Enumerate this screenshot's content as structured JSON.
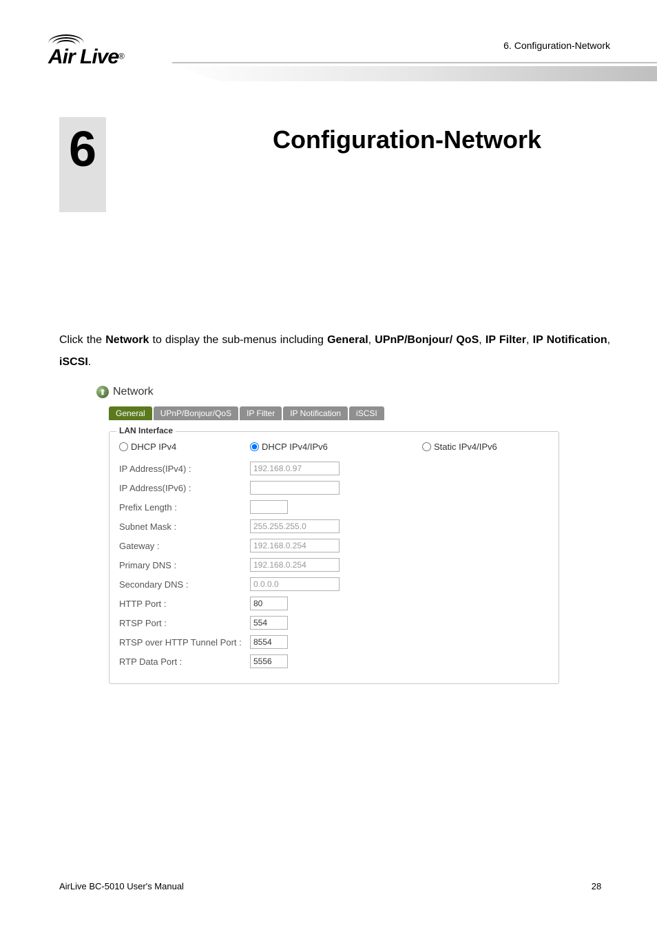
{
  "header": {
    "logo_text": "Air Live",
    "reg_mark": "®",
    "breadcrumb": "6.  Configuration-Network"
  },
  "chapter": {
    "number": "6",
    "title": "Configuration-Network"
  },
  "intro": {
    "pre": "Click the ",
    "b1": "Network",
    "mid1": " to display the sub-menus including ",
    "b2": "General",
    "sep1": ", ",
    "b3": "UPnP/Bonjour/ QoS",
    "sep2": ", ",
    "b4": "IP Filter",
    "sep3": ", ",
    "b5": "IP Notification",
    "sep4": ", ",
    "b6": "iSCSI",
    "end": "."
  },
  "screenshot": {
    "section_label": "Network",
    "tabs": [
      "General",
      "UPnP/Bonjour/QoS",
      "IP Filter",
      "IP Notification",
      "iSCSI"
    ],
    "active_tab_index": 0,
    "fieldset_legend": "LAN Interface",
    "radios": {
      "r1": "DHCP IPv4",
      "r2": "DHCP IPv4/IPv6",
      "r3": "Static IPv4/IPv6",
      "selected": "r2"
    },
    "rows": [
      {
        "label": "IP Address(IPv4) :",
        "value": "192.168.0.97",
        "w": "ip",
        "enabled": false
      },
      {
        "label": "IP Address(IPv6) :",
        "value": "",
        "w": "ip",
        "enabled": false
      },
      {
        "label": "Prefix Length :",
        "value": "",
        "w": "prefix",
        "enabled": false
      },
      {
        "label": "Subnet Mask :",
        "value": "255.255.255.0",
        "w": "ip",
        "enabled": false
      },
      {
        "label": "Gateway :",
        "value": "192.168.0.254",
        "w": "ip",
        "enabled": false
      },
      {
        "label": "Primary DNS :",
        "value": "192.168.0.254",
        "w": "ip",
        "enabled": false
      },
      {
        "label": "Secondary DNS :",
        "value": "0.0.0.0",
        "w": "ip",
        "enabled": false
      },
      {
        "label": "HTTP Port :",
        "value": "80",
        "w": "port",
        "enabled": true
      },
      {
        "label": "RTSP Port :",
        "value": "554",
        "w": "port",
        "enabled": true
      },
      {
        "label": "RTSP over HTTP Tunnel Port :",
        "value": "8554",
        "w": "port",
        "enabled": true
      },
      {
        "label": "RTP Data Port :",
        "value": "5556",
        "w": "port",
        "enabled": true
      }
    ]
  },
  "footer": {
    "manual": "AirLive BC-5010 User's Manual",
    "page": "28"
  },
  "colors": {
    "tab_active": "#5b7a1f",
    "tab_inactive": "#8f8f8f",
    "border": "#c8c8c8",
    "chapter_bg": "#e0e0e0"
  }
}
